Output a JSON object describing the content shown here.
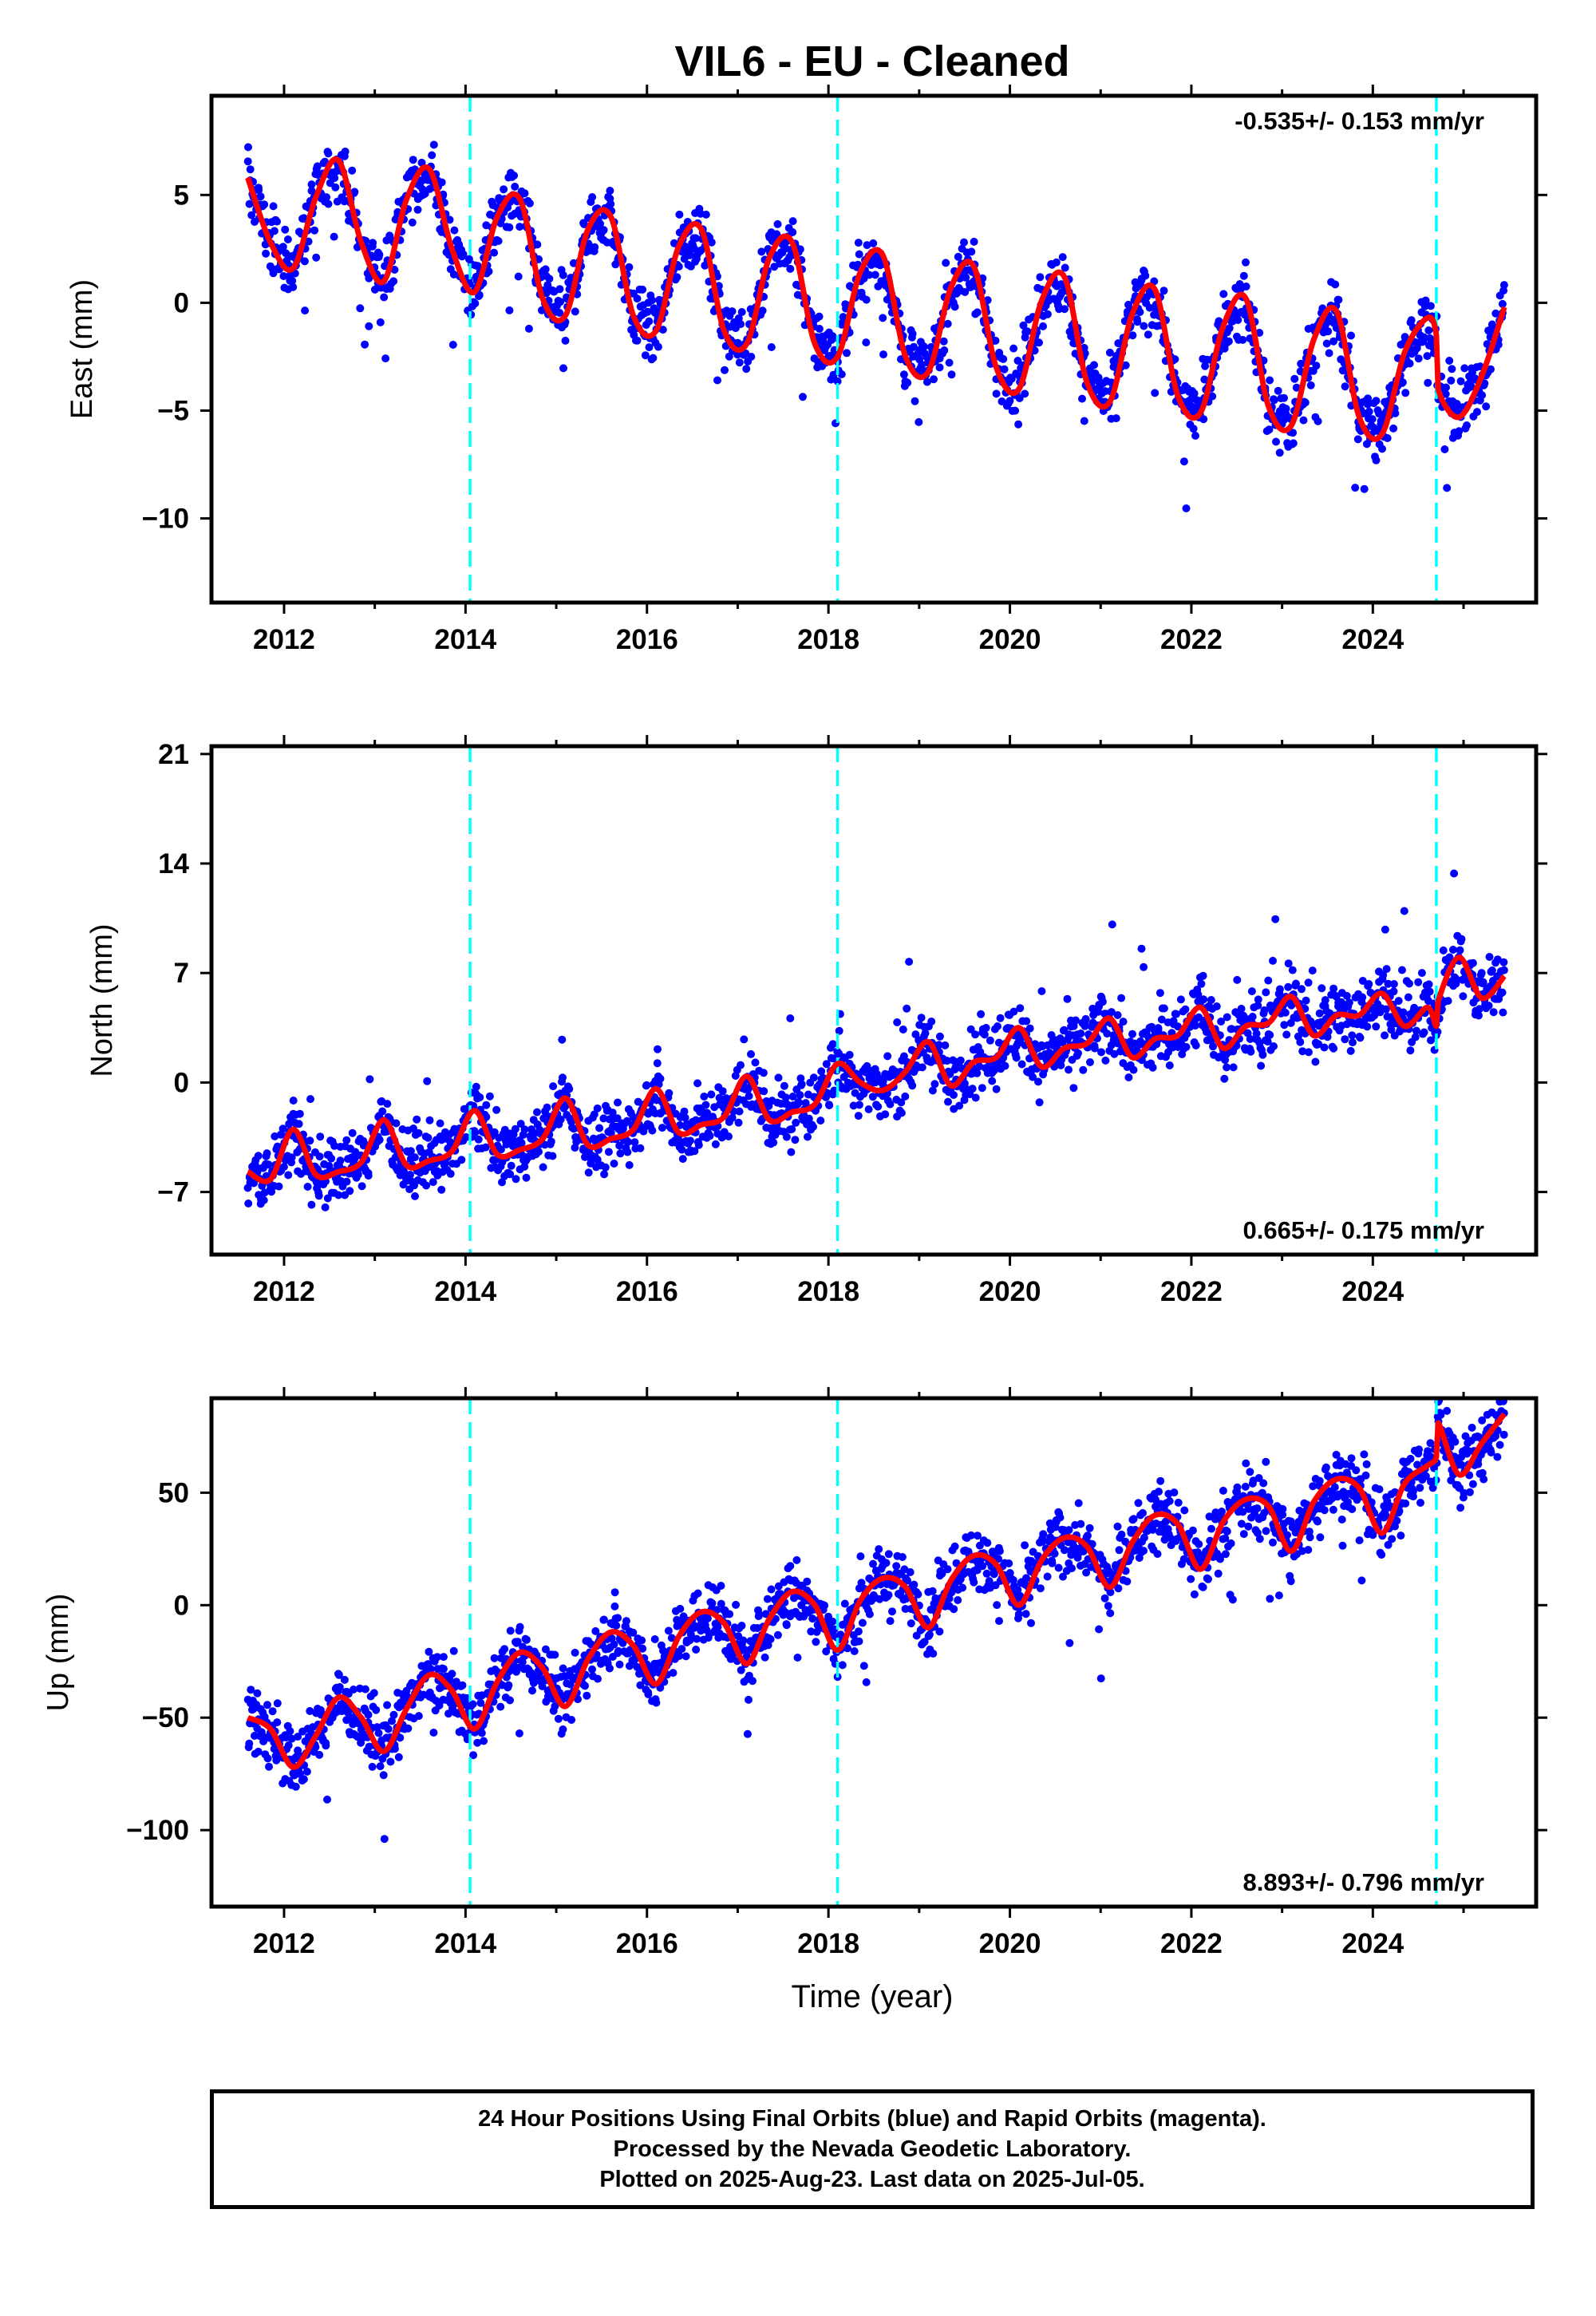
{
  "title": "VIL6  - EU - Cleaned",
  "xlabel": "Time (year)",
  "colors": {
    "points": "#0000ff",
    "fit": "#ff0000",
    "events": "#00ffff",
    "frame": "#000000"
  },
  "event_lines": [
    2014.05,
    2018.1,
    2024.7
  ],
  "chart_data": [
    {
      "type": "scatter",
      "name": "east",
      "ylabel": "East (mm)",
      "xlim": [
        2011.2,
        2025.8
      ],
      "ylim": [
        -13.9,
        9.6
      ],
      "yticks": [
        5,
        0,
        -5,
        -10
      ],
      "xticks": [
        2012,
        2014,
        2016,
        2018,
        2020,
        2022,
        2024
      ],
      "rate_label": "-0.535+/- 0.153 mm/yr",
      "rate_position": "top-right",
      "fit_curve": {
        "x": [
          2011.6,
          2011.85,
          2012.1,
          2012.35,
          2012.6,
          2012.85,
          2013.1,
          2013.35,
          2013.6,
          2013.85,
          2014.1,
          2014.35,
          2014.6,
          2014.85,
          2015.1,
          2015.35,
          2015.6,
          2015.85,
          2016.1,
          2016.35,
          2016.6,
          2016.85,
          2017.1,
          2017.35,
          2017.6,
          2017.85,
          2018.1,
          2018.35,
          2018.6,
          2018.85,
          2019.1,
          2019.35,
          2019.6,
          2019.85,
          2020.1,
          2020.35,
          2020.6,
          2020.85,
          2021.1,
          2021.35,
          2021.6,
          2021.85,
          2022.1,
          2022.35,
          2022.6,
          2022.85,
          2023.1,
          2023.35,
          2023.6,
          2023.85,
          2024.1,
          2024.35,
          2024.6,
          2024.7,
          2024.72,
          2024.95,
          2025.2,
          2025.45
        ],
        "y": [
          5.8,
          2.8,
          1.6,
          4.9,
          6.6,
          2.8,
          1.0,
          4.8,
          6.2,
          2.5,
          0.5,
          4.0,
          4.8,
          0.2,
          -0.6,
          3.4,
          4.0,
          -0.6,
          -1.3,
          2.6,
          3.4,
          -1.3,
          -1.9,
          2.1,
          2.8,
          -1.9,
          -2.5,
          1.4,
          2.2,
          -2.5,
          -3.2,
          0.7,
          1.7,
          -3.0,
          -4.0,
          0.1,
          1.2,
          -3.7,
          -4.6,
          -0.5,
          0.6,
          -4.3,
          -5.1,
          -1.1,
          0.2,
          -4.8,
          -5.7,
          -1.7,
          -0.4,
          -5.3,
          -6.1,
          -2.3,
          -0.7,
          -1.5,
          -4.0,
          -5.3,
          -3.4,
          -0.2
        ]
      }
    },
    {
      "type": "scatter",
      "name": "north",
      "ylabel": "North (mm)",
      "xlim": [
        2011.2,
        2025.8
      ],
      "ylim": [
        -11,
        21.5
      ],
      "yticks": [
        21,
        14,
        7,
        0,
        -7
      ],
      "xticks": [
        2012,
        2014,
        2016,
        2018,
        2020,
        2022,
        2024
      ],
      "rate_label": "0.665+/- 0.175 mm/yr",
      "rate_position": "bottom-right",
      "fit_curve": {
        "x": [
          2011.6,
          2011.85,
          2012.1,
          2012.35,
          2012.6,
          2012.85,
          2013.1,
          2013.35,
          2013.6,
          2013.85,
          2014.1,
          2014.35,
          2014.6,
          2014.85,
          2015.1,
          2015.35,
          2015.6,
          2015.85,
          2016.1,
          2016.35,
          2016.6,
          2016.85,
          2017.1,
          2017.35,
          2017.6,
          2017.85,
          2018.1,
          2018.35,
          2018.6,
          2018.85,
          2019.1,
          2019.35,
          2019.6,
          2019.85,
          2020.1,
          2020.35,
          2020.6,
          2020.85,
          2021.1,
          2021.35,
          2021.6,
          2021.85,
          2022.1,
          2022.35,
          2022.6,
          2022.85,
          2023.1,
          2023.35,
          2023.6,
          2023.85,
          2024.1,
          2024.35,
          2024.6,
          2024.7,
          2024.72,
          2024.95,
          2025.2,
          2025.45
        ],
        "y": [
          -5.7,
          -6.2,
          -3.0,
          -5.9,
          -5.7,
          -5.1,
          -2.4,
          -5.3,
          -5.0,
          -4.4,
          -1.8,
          -4.6,
          -4.3,
          -3.6,
          -1.0,
          -4.0,
          -3.6,
          -3.0,
          -0.4,
          -3.2,
          -2.7,
          -2.2,
          0.4,
          -2.4,
          -1.9,
          -1.4,
          1.2,
          0.0,
          -0.5,
          0.7,
          2.6,
          -0.2,
          1.3,
          1.6,
          3.5,
          1.0,
          2.2,
          2.5,
          4.1,
          1.6,
          2.8,
          3.0,
          4.8,
          2.2,
          3.6,
          3.8,
          5.5,
          3.0,
          4.3,
          4.3,
          5.7,
          3.6,
          4.8,
          3.6,
          5.2,
          8.0,
          5.4,
          6.8
        ]
      }
    },
    {
      "type": "scatter",
      "name": "up",
      "ylabel": "Up (mm)",
      "xlim": [
        2011.2,
        2025.8
      ],
      "ylim": [
        -134,
        92
      ],
      "yticks": [
        50,
        0,
        -50,
        -100
      ],
      "xticks": [
        2012,
        2014,
        2016,
        2018,
        2020,
        2022,
        2024
      ],
      "rate_label": "8.893+/- 0.796 mm/yr",
      "rate_position": "bottom-right",
      "fit_curve": {
        "x": [
          2011.6,
          2011.85,
          2012.1,
          2012.35,
          2012.6,
          2012.85,
          2013.1,
          2013.35,
          2013.6,
          2013.85,
          2014.1,
          2014.35,
          2014.6,
          2014.85,
          2015.1,
          2015.35,
          2015.6,
          2015.85,
          2016.1,
          2016.35,
          2016.6,
          2016.85,
          2017.1,
          2017.35,
          2017.6,
          2017.85,
          2018.1,
          2018.35,
          2018.6,
          2018.85,
          2019.1,
          2019.35,
          2019.6,
          2019.85,
          2020.1,
          2020.35,
          2020.6,
          2020.85,
          2021.1,
          2021.35,
          2021.6,
          2021.85,
          2022.1,
          2022.35,
          2022.6,
          2022.85,
          2023.1,
          2023.35,
          2023.6,
          2023.85,
          2024.1,
          2024.35,
          2024.6,
          2024.7,
          2024.72,
          2024.95,
          2025.2,
          2025.45
        ],
        "y": [
          -50,
          -55,
          -72,
          -58,
          -41,
          -50,
          -65,
          -46,
          -31,
          -38,
          -55,
          -34,
          -21,
          -28,
          -45,
          -24,
          -12,
          -18,
          -35,
          -14,
          -3,
          -8,
          -26,
          -6,
          6,
          0,
          -20,
          2,
          12,
          8,
          -10,
          11,
          22,
          18,
          0,
          20,
          30,
          26,
          8,
          28,
          40,
          36,
          16,
          37,
          47,
          44,
          24,
          46,
          56,
          52,
          32,
          54,
          62,
          66,
          81,
          58,
          72,
          85
        ]
      }
    }
  ],
  "caption": {
    "line1": "24 Hour Positions Using Final Orbits (blue) and Rapid Orbits (magenta).",
    "line2": "Processed by the Nevada Geodetic Laboratory.",
    "line3": "Plotted on 2025-Aug-23. Last data on 2025-Jul-05."
  }
}
